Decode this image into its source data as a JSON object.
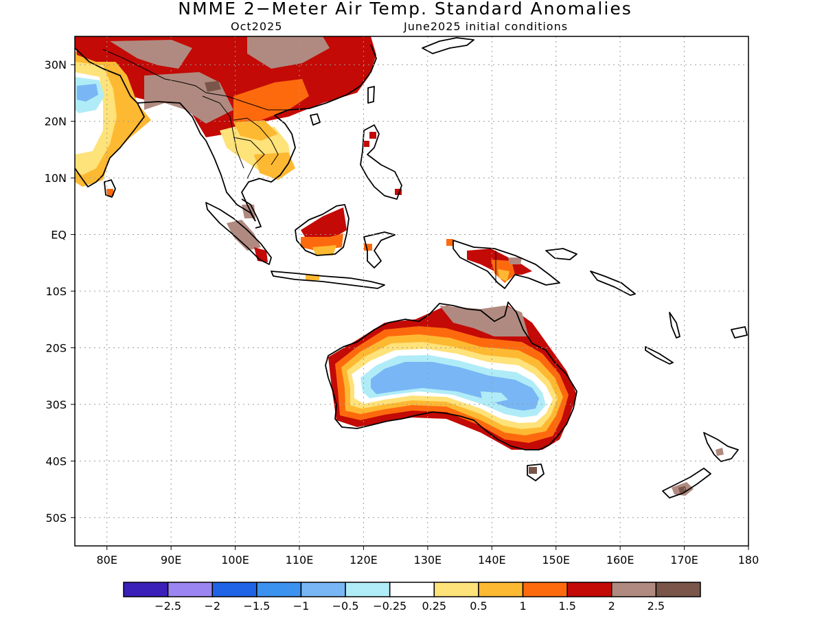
{
  "title": "NMME 2−Meter Air Temp. Standard Anomalies",
  "subtitle_left": "Oct2025",
  "subtitle_right": "June2025 initial conditions",
  "map": {
    "lon_range": [
      75,
      180
    ],
    "lat_range": [
      -55,
      35
    ],
    "lat_ticks": [
      {
        "lat": 30,
        "label": "30N"
      },
      {
        "lat": 20,
        "label": "20N"
      },
      {
        "lat": 10,
        "label": "10N"
      },
      {
        "lat": 0,
        "label": "EQ"
      },
      {
        "lat": -10,
        "label": "10S"
      },
      {
        "lat": -20,
        "label": "20S"
      },
      {
        "lat": -30,
        "label": "30S"
      },
      {
        "lat": -40,
        "label": "40S"
      },
      {
        "lat": -50,
        "label": "50S"
      }
    ],
    "lon_ticks": [
      {
        "lon": 80,
        "label": "80E"
      },
      {
        "lon": 90,
        "label": "90E"
      },
      {
        "lon": 100,
        "label": "100E"
      },
      {
        "lon": 110,
        "label": "110E"
      },
      {
        "lon": 120,
        "label": "120E"
      },
      {
        "lon": 130,
        "label": "130E"
      },
      {
        "lon": 140,
        "label": "140E"
      },
      {
        "lon": 150,
        "label": "150E"
      },
      {
        "lon": 160,
        "label": "160E"
      },
      {
        "lon": 170,
        "label": "170E"
      },
      {
        "lon": 180,
        "label": "180"
      }
    ],
    "grid": true
  },
  "colorbar": {
    "colors": [
      "#3a1fb8",
      "#9b85f0",
      "#1f64e6",
      "#3c92ef",
      "#78b6f5",
      "#b0ecf7",
      "#ffffff",
      "#fee27a",
      "#feb932",
      "#fd6a0e",
      "#c30a06",
      "#b08a80",
      "#7a5549"
    ],
    "labels": [
      "−2.5",
      "−2",
      "−1.5",
      "−1",
      "−0.5",
      "−0.25",
      "0.25",
      "0.5",
      "1",
      "1.5",
      "2",
      "2.5"
    ]
  }
}
